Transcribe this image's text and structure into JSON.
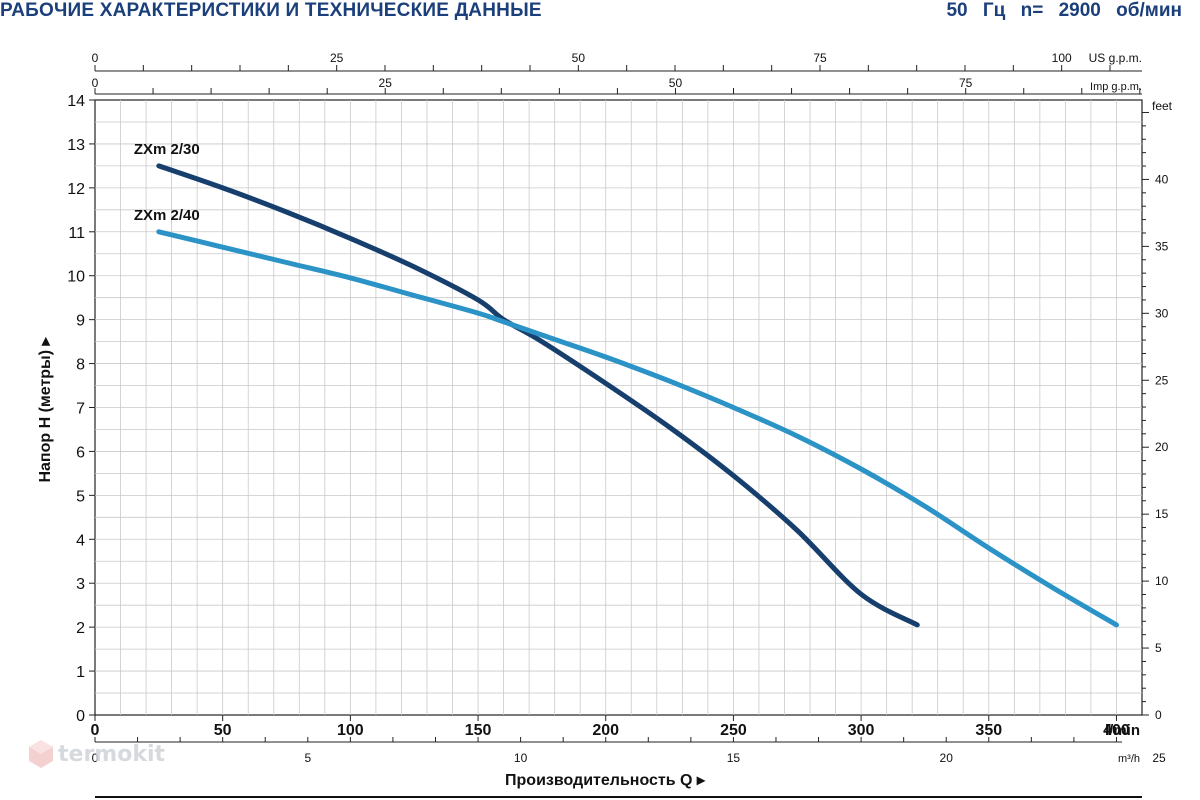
{
  "header": {
    "title": "РАБОЧИЕ ХАРАКТЕРИСТИКИ И ТЕХНИЧЕСКИЕ ДАННЫЕ",
    "subtitle": "50 Гц n= 2900 об/мин"
  },
  "watermark": {
    "text": "termokit"
  },
  "chart_data": {
    "type": "line",
    "xlabel": "Производительность Q",
    "ylabel": "Напор H (метры)",
    "xlim": [
      0,
      410
    ],
    "ylim": [
      0,
      14
    ],
    "grid": true,
    "x_unit_label": "l/min",
    "x_ticks": [
      0,
      50,
      100,
      150,
      200,
      250,
      300,
      350,
      400
    ],
    "y_ticks": [
      0,
      1,
      2,
      3,
      4,
      5,
      6,
      7,
      8,
      9,
      10,
      11,
      12,
      13,
      14
    ],
    "secondary_axes": {
      "right_feet": {
        "label": "feet",
        "ticks": [
          0,
          5,
          10,
          15,
          20,
          25,
          30,
          35,
          40
        ]
      },
      "top_us_gpm": {
        "label": "US g.p.m.",
        "ticks": [
          0,
          25,
          50,
          75,
          100
        ]
      },
      "top_imp_gpm": {
        "label": "Imp g.p.m.",
        "ticks": [
          0,
          25,
          50,
          75
        ]
      },
      "bottom_m3h": {
        "label": "m³/h",
        "ticks": [
          0,
          5,
          10,
          15,
          20,
          25
        ]
      }
    },
    "series": [
      {
        "name": "ZXm 2/30",
        "color": "#173f6e",
        "x": [
          25,
          50,
          75,
          100,
          125,
          150,
          160,
          175,
          200,
          225,
          250,
          275,
          300,
          322
        ],
        "y": [
          12.5,
          12.0,
          11.45,
          10.85,
          10.2,
          9.45,
          9.0,
          8.5,
          7.55,
          6.55,
          5.45,
          4.2,
          2.75,
          2.05
        ]
      },
      {
        "name": "ZXm 2/40",
        "color": "#2c93c7",
        "x": [
          25,
          50,
          75,
          100,
          125,
          150,
          160,
          175,
          200,
          225,
          250,
          275,
          300,
          325,
          350,
          375,
          400
        ],
        "y": [
          11.0,
          10.65,
          10.3,
          9.95,
          9.55,
          9.15,
          8.95,
          8.65,
          8.15,
          7.6,
          7.0,
          6.35,
          5.6,
          4.75,
          3.8,
          2.9,
          2.05
        ]
      }
    ]
  }
}
